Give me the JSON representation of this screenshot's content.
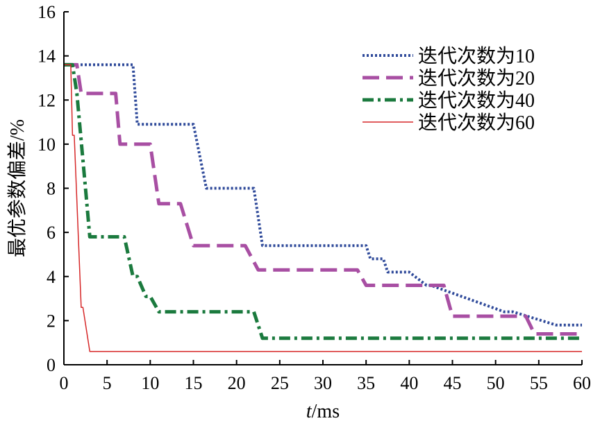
{
  "chart_data": {
    "type": "line",
    "title": "",
    "xlabel_italic": "t",
    "xlabel_unit": "/ms",
    "ylabel": "最优参数偏差/%",
    "xlim": [
      0,
      60
    ],
    "ylim": [
      0,
      16
    ],
    "x_ticks": [
      "0",
      "5",
      "10",
      "15",
      "20",
      "25",
      "30",
      "35",
      "40",
      "45",
      "50",
      "55",
      "60"
    ],
    "y_ticks": [
      "0",
      "2",
      "4",
      "6",
      "8",
      "10",
      "12",
      "14",
      "16"
    ],
    "grid": false,
    "legend_position": "top-right",
    "series": [
      {
        "name": "迭代次数为10",
        "color": "#2f4a9a",
        "style": "dotted",
        "x": [
          0,
          8,
          8.5,
          15,
          16.5,
          22,
          23,
          35,
          35.5,
          37,
          37.5,
          40,
          42,
          42.5,
          51,
          52,
          57,
          58,
          60
        ],
        "y": [
          13.6,
          13.6,
          10.9,
          10.9,
          8.0,
          8.0,
          5.4,
          5.4,
          4.8,
          4.8,
          4.2,
          4.2,
          3.6,
          3.6,
          2.4,
          2.4,
          1.8,
          1.8,
          1.8
        ]
      },
      {
        "name": "迭代次数为20",
        "color": "#a84fa3",
        "style": "dashed",
        "x": [
          0,
          1.5,
          2,
          6,
          6.5,
          10,
          11,
          13.5,
          15,
          16.5,
          21,
          22.5,
          34,
          35,
          44,
          45,
          53.5,
          54.5,
          60
        ],
        "y": [
          13.6,
          13.6,
          12.3,
          12.3,
          10.0,
          10.0,
          7.3,
          7.3,
          5.4,
          5.4,
          5.4,
          4.3,
          4.3,
          3.6,
          3.6,
          2.2,
          2.2,
          1.4,
          1.4
        ]
      },
      {
        "name": "迭代次数为40",
        "color": "#1b7a3e",
        "style": "dash-dot",
        "x": [
          0,
          1,
          1.5,
          2.5,
          3,
          7,
          8,
          8.5,
          9.5,
          10,
          11,
          12,
          22,
          23,
          60
        ],
        "y": [
          13.6,
          13.6,
          12.3,
          8.0,
          5.8,
          5.8,
          4.0,
          4.0,
          3.1,
          3.1,
          2.4,
          2.4,
          2.4,
          1.2,
          1.2
        ]
      },
      {
        "name": "迭代次数为60",
        "color": "#d62728",
        "style": "solid",
        "x": [
          0,
          0.8,
          1.0,
          1.2,
          2.0,
          2.2,
          3.0,
          60
        ],
        "y": [
          13.6,
          13.6,
          10.4,
          10.4,
          2.6,
          2.6,
          0.6,
          0.6
        ]
      }
    ]
  }
}
